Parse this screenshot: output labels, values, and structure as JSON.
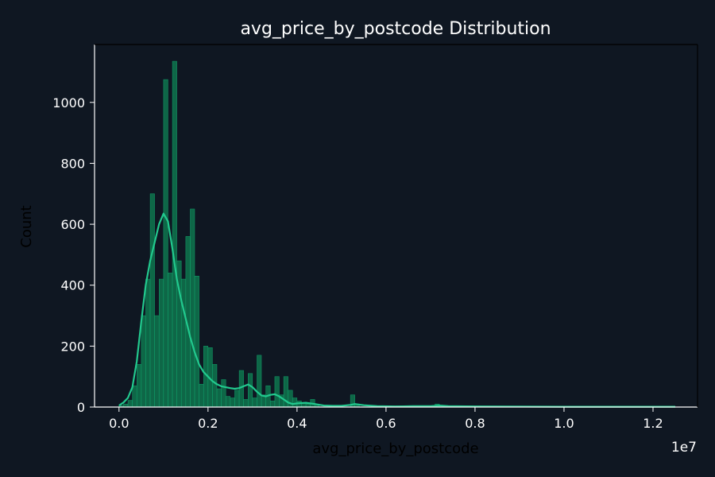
{
  "colors": {
    "background": "#0f1722",
    "text": "#ffffff",
    "axis_label": "#000000",
    "bar": "#0f6b4a",
    "bar_edge": "#11a06a",
    "kde_line": "#22c98e",
    "spine": "#ffffff"
  },
  "chart_data": {
    "type": "bar",
    "title": "avg_price_by_postcode Distribution",
    "xlabel": "avg_price_by_postcode",
    "ylabel": "Count",
    "x_offset_label": "1e7",
    "xlim": [
      -0.055,
      1.3
    ],
    "ylim": [
      0,
      1190
    ],
    "x_ticks": [
      0.0,
      0.2,
      0.4,
      0.6,
      0.8,
      1.0,
      1.2
    ],
    "x_tick_labels": [
      "0.0",
      "0.2",
      "0.4",
      "0.6",
      "0.8",
      "1.0",
      "1.2"
    ],
    "y_ticks": [
      0,
      200,
      400,
      600,
      800,
      1000
    ],
    "y_tick_labels": [
      "0",
      "200",
      "400",
      "600",
      "800",
      "1000"
    ],
    "grid": false,
    "bin_width": 0.0098,
    "bins_x": [
      0.005,
      0.015,
      0.025,
      0.035,
      0.045,
      0.055,
      0.065,
      0.075,
      0.085,
      0.095,
      0.105,
      0.115,
      0.125,
      0.135,
      0.145,
      0.155,
      0.165,
      0.175,
      0.185,
      0.195,
      0.205,
      0.215,
      0.225,
      0.235,
      0.245,
      0.255,
      0.265,
      0.275,
      0.285,
      0.295,
      0.305,
      0.315,
      0.325,
      0.335,
      0.345,
      0.355,
      0.365,
      0.375,
      0.385,
      0.395,
      0.405,
      0.415,
      0.425,
      0.435,
      0.445,
      0.525,
      0.535,
      0.715
    ],
    "bins_count": [
      5,
      10,
      22,
      70,
      140,
      300,
      420,
      700,
      300,
      420,
      1075,
      440,
      1135,
      480,
      420,
      560,
      650,
      430,
      75,
      200,
      195,
      140,
      60,
      90,
      35,
      30,
      55,
      120,
      25,
      110,
      30,
      170,
      40,
      70,
      20,
      100,
      40,
      100,
      55,
      30,
      20,
      15,
      10,
      25,
      8,
      40,
      10,
      10
    ],
    "kde": {
      "x": [
        0.0,
        0.01,
        0.02,
        0.03,
        0.04,
        0.05,
        0.06,
        0.07,
        0.08,
        0.09,
        0.1,
        0.11,
        0.12,
        0.13,
        0.14,
        0.15,
        0.16,
        0.17,
        0.18,
        0.19,
        0.2,
        0.21,
        0.22,
        0.23,
        0.24,
        0.25,
        0.26,
        0.27,
        0.28,
        0.29,
        0.3,
        0.31,
        0.32,
        0.33,
        0.34,
        0.35,
        0.36,
        0.37,
        0.38,
        0.39,
        0.4,
        0.42,
        0.44,
        0.46,
        0.48,
        0.5,
        0.52,
        0.53,
        0.55,
        0.58,
        0.62,
        0.66,
        0.7,
        0.72,
        0.74,
        0.8,
        1.0,
        1.2,
        1.25
      ],
      "y": [
        5,
        15,
        30,
        65,
        150,
        280,
        400,
        480,
        540,
        600,
        635,
        610,
        520,
        420,
        350,
        290,
        230,
        180,
        140,
        115,
        100,
        85,
        75,
        68,
        65,
        62,
        60,
        62,
        68,
        74,
        65,
        50,
        38,
        35,
        40,
        42,
        35,
        25,
        15,
        10,
        12,
        14,
        10,
        5,
        4,
        4,
        7,
        10,
        6,
        3,
        2,
        3,
        3,
        5,
        3,
        2,
        1,
        1,
        1
      ]
    }
  }
}
